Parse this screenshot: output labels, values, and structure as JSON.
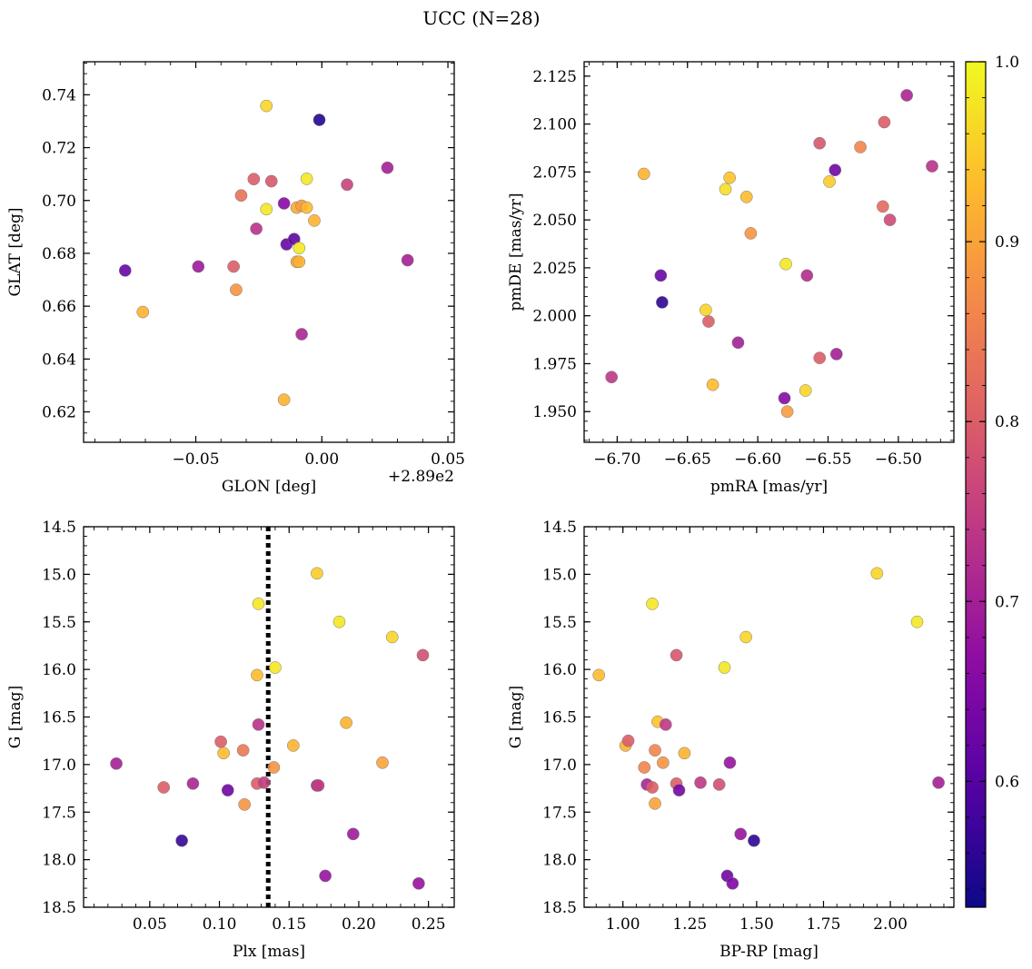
{
  "figure_title": "UCC (N=28)",
  "colorbar": {
    "ticks": [
      0.6,
      0.7,
      0.8,
      0.9,
      1.0
    ],
    "tick_labels": [
      "0.6",
      "0.7",
      "0.8",
      "0.9",
      "1.0"
    ],
    "range": [
      0.53,
      1.0
    ],
    "colormap": "plasma"
  },
  "chart_data": [
    {
      "type": "scatter",
      "id": "glon-glat",
      "xlabel": "GLON [deg]",
      "ylabel": "GLAT [deg]",
      "x_offset_label": "+2.89e2",
      "xlim": [
        -0.0945,
        0.0525
      ],
      "ylim": [
        0.6085,
        0.7525
      ],
      "xticks": [
        -0.05,
        0.0,
        0.05
      ],
      "xtick_labels": [
        "−0.05",
        "0.00",
        "0.05"
      ],
      "yticks": [
        0.62,
        0.64,
        0.66,
        0.68,
        0.7,
        0.72,
        0.74
      ],
      "ytick_labels": [
        "0.62",
        "0.64",
        "0.66",
        "0.68",
        "0.70",
        "0.72",
        "0.74"
      ],
      "points": [
        {
          "x": -0.078,
          "y": 0.6735,
          "c": 0.62
        },
        {
          "x": -0.071,
          "y": 0.6578,
          "c": 0.92
        },
        {
          "x": -0.049,
          "y": 0.675,
          "c": 0.69
        },
        {
          "x": -0.035,
          "y": 0.675,
          "c": 0.8
        },
        {
          "x": -0.034,
          "y": 0.6662,
          "c": 0.88
        },
        {
          "x": -0.032,
          "y": 0.7019,
          "c": 0.83
        },
        {
          "x": -0.027,
          "y": 0.7081,
          "c": 0.8
        },
        {
          "x": -0.026,
          "y": 0.6893,
          "c": 0.73
        },
        {
          "x": -0.022,
          "y": 0.7358,
          "c": 0.96
        },
        {
          "x": -0.022,
          "y": 0.6967,
          "c": 0.98
        },
        {
          "x": -0.02,
          "y": 0.7073,
          "c": 0.79
        },
        {
          "x": -0.015,
          "y": 0.6989,
          "c": 0.66
        },
        {
          "x": -0.015,
          "y": 0.6246,
          "c": 0.92
        },
        {
          "x": -0.014,
          "y": 0.6834,
          "c": 0.62
        },
        {
          "x": -0.011,
          "y": 0.6854,
          "c": 0.61
        },
        {
          "x": -0.01,
          "y": 0.6768,
          "c": 0.9
        },
        {
          "x": -0.01,
          "y": 0.6973,
          "c": 0.91
        },
        {
          "x": -0.009,
          "y": 0.6768,
          "c": 0.92
        },
        {
          "x": -0.009,
          "y": 0.682,
          "c": 0.98
        },
        {
          "x": -0.008,
          "y": 0.698,
          "c": 0.89
        },
        {
          "x": -0.008,
          "y": 0.6494,
          "c": 0.71
        },
        {
          "x": -0.006,
          "y": 0.7082,
          "c": 0.98
        },
        {
          "x": -0.006,
          "y": 0.6973,
          "c": 0.93
        },
        {
          "x": -0.003,
          "y": 0.6924,
          "c": 0.92
        },
        {
          "x": -0.001,
          "y": 0.7305,
          "c": 0.55
        },
        {
          "x": 0.01,
          "y": 0.706,
          "c": 0.76
        },
        {
          "x": 0.026,
          "y": 0.7124,
          "c": 0.7
        },
        {
          "x": 0.034,
          "y": 0.6774,
          "c": 0.7
        }
      ]
    },
    {
      "type": "scatter",
      "id": "pmra-pmde",
      "xlabel": "pmRA [mas/yr]",
      "ylabel": "pmDE [mas/yr]",
      "xlim": [
        -6.7235,
        -6.4605
      ],
      "ylim": [
        1.934,
        2.1325
      ],
      "xticks": [
        -6.7,
        -6.65,
        -6.6,
        -6.55,
        -6.5
      ],
      "xtick_labels": [
        "−6.70",
        "−6.65",
        "−6.60",
        "−6.55",
        "−6.50"
      ],
      "yticks": [
        1.95,
        1.975,
        2.0,
        2.025,
        2.05,
        2.075,
        2.1,
        2.125
      ],
      "ytick_labels": [
        "1.950",
        "1.975",
        "2.000",
        "2.025",
        "2.050",
        "2.075",
        "2.100",
        "2.125"
      ],
      "points": [
        {
          "x": -6.704,
          "y": 1.968,
          "c": 0.74
        },
        {
          "x": -6.681,
          "y": 2.074,
          "c": 0.92
        },
        {
          "x": -6.669,
          "y": 2.021,
          "c": 0.62
        },
        {
          "x": -6.668,
          "y": 2.007,
          "c": 0.56
        },
        {
          "x": -6.637,
          "y": 2.003,
          "c": 0.96
        },
        {
          "x": -6.635,
          "y": 1.997,
          "c": 0.8
        },
        {
          "x": -6.632,
          "y": 1.964,
          "c": 0.93
        },
        {
          "x": -6.623,
          "y": 2.066,
          "c": 0.97
        },
        {
          "x": -6.62,
          "y": 2.072,
          "c": 0.94
        },
        {
          "x": -6.614,
          "y": 1.986,
          "c": 0.7
        },
        {
          "x": -6.608,
          "y": 2.062,
          "c": 0.93
        },
        {
          "x": -6.605,
          "y": 2.043,
          "c": 0.88
        },
        {
          "x": -6.581,
          "y": 1.957,
          "c": 0.66
        },
        {
          "x": -6.58,
          "y": 2.027,
          "c": 0.98
        },
        {
          "x": -6.579,
          "y": 1.95,
          "c": 0.89
        },
        {
          "x": -6.566,
          "y": 1.961,
          "c": 0.96
        },
        {
          "x": -6.565,
          "y": 2.021,
          "c": 0.72
        },
        {
          "x": -6.556,
          "y": 1.978,
          "c": 0.8
        },
        {
          "x": -6.556,
          "y": 2.09,
          "c": 0.79
        },
        {
          "x": -6.549,
          "y": 2.07,
          "c": 0.95
        },
        {
          "x": -6.545,
          "y": 2.076,
          "c": 0.63
        },
        {
          "x": -6.544,
          "y": 1.98,
          "c": 0.7
        },
        {
          "x": -6.527,
          "y": 2.088,
          "c": 0.86
        },
        {
          "x": -6.511,
          "y": 2.057,
          "c": 0.82
        },
        {
          "x": -6.51,
          "y": 2.101,
          "c": 0.8
        },
        {
          "x": -6.506,
          "y": 2.05,
          "c": 0.77
        },
        {
          "x": -6.494,
          "y": 2.115,
          "c": 0.71
        },
        {
          "x": -6.476,
          "y": 2.078,
          "c": 0.73
        }
      ]
    },
    {
      "type": "scatter",
      "id": "plx-g",
      "xlabel": "Plx [mas]",
      "ylabel": "G [mag]",
      "xlim": [
        0.0025,
        0.2685
      ],
      "ylim": [
        18.5,
        14.5
      ],
      "y_inverted": true,
      "vline": {
        "x": 0.135,
        "style": "dotted"
      },
      "xticks": [
        0.05,
        0.1,
        0.15,
        0.2,
        0.25
      ],
      "xtick_labels": [
        "0.05",
        "0.10",
        "0.15",
        "0.20",
        "0.25"
      ],
      "yticks": [
        14.5,
        15.0,
        15.5,
        16.0,
        16.5,
        17.0,
        17.5,
        18.0,
        18.5
      ],
      "ytick_labels": [
        "14.5",
        "15.0",
        "15.5",
        "16.0",
        "16.5",
        "17.0",
        "17.5",
        "18.0",
        "18.5"
      ],
      "points": [
        {
          "x": 0.026,
          "y": 16.99,
          "c": 0.7
        },
        {
          "x": 0.06,
          "y": 17.24,
          "c": 0.8
        },
        {
          "x": 0.073,
          "y": 17.8,
          "c": 0.57
        },
        {
          "x": 0.081,
          "y": 17.2,
          "c": 0.71
        },
        {
          "x": 0.101,
          "y": 16.76,
          "c": 0.8
        },
        {
          "x": 0.103,
          "y": 16.88,
          "c": 0.93
        },
        {
          "x": 0.106,
          "y": 17.27,
          "c": 0.63
        },
        {
          "x": 0.117,
          "y": 16.85,
          "c": 0.84
        },
        {
          "x": 0.118,
          "y": 17.42,
          "c": 0.88
        },
        {
          "x": 0.127,
          "y": 17.2,
          "c": 0.8
        },
        {
          "x": 0.127,
          "y": 16.06,
          "c": 0.93
        },
        {
          "x": 0.128,
          "y": 15.31,
          "c": 0.98
        },
        {
          "x": 0.128,
          "y": 16.58,
          "c": 0.73
        },
        {
          "x": 0.132,
          "y": 17.19,
          "c": 0.75
        },
        {
          "x": 0.139,
          "y": 17.03,
          "c": 0.88
        },
        {
          "x": 0.14,
          "y": 15.98,
          "c": 0.98
        },
        {
          "x": 0.153,
          "y": 16.8,
          "c": 0.92
        },
        {
          "x": 0.17,
          "y": 14.99,
          "c": 0.95
        },
        {
          "x": 0.17,
          "y": 17.22,
          "c": 0.7
        },
        {
          "x": 0.171,
          "y": 17.22,
          "c": 0.75
        },
        {
          "x": 0.176,
          "y": 18.17,
          "c": 0.68
        },
        {
          "x": 0.186,
          "y": 15.5,
          "c": 0.98
        },
        {
          "x": 0.191,
          "y": 16.56,
          "c": 0.92
        },
        {
          "x": 0.196,
          "y": 17.73,
          "c": 0.69
        },
        {
          "x": 0.217,
          "y": 16.98,
          "c": 0.9
        },
        {
          "x": 0.224,
          "y": 15.66,
          "c": 0.96
        },
        {
          "x": 0.243,
          "y": 18.25,
          "c": 0.68
        },
        {
          "x": 0.246,
          "y": 15.85,
          "c": 0.78
        }
      ]
    },
    {
      "type": "scatter",
      "id": "bprp-g",
      "xlabel": "BP-RP [mag]",
      "ylabel": "G [mag]",
      "xlim": [
        0.855,
        2.2375
      ],
      "ylim": [
        18.5,
        14.5
      ],
      "y_inverted": true,
      "xticks": [
        1.0,
        1.25,
        1.5,
        1.75,
        2.0
      ],
      "xtick_labels": [
        "1.00",
        "1.25",
        "1.50",
        "1.75",
        "2.00"
      ],
      "yticks": [
        14.5,
        15.0,
        15.5,
        16.0,
        16.5,
        17.0,
        17.5,
        18.0,
        18.5
      ],
      "ytick_labels": [
        "14.5",
        "15.0",
        "15.5",
        "16.0",
        "16.5",
        "17.0",
        "17.5",
        "18.0",
        "18.5"
      ],
      "points": [
        {
          "x": 0.91,
          "y": 16.06,
          "c": 0.93
        },
        {
          "x": 1.01,
          "y": 16.8,
          "c": 0.92
        },
        {
          "x": 1.02,
          "y": 16.75,
          "c": 0.8
        },
        {
          "x": 1.08,
          "y": 17.03,
          "c": 0.86
        },
        {
          "x": 1.09,
          "y": 17.21,
          "c": 0.71
        },
        {
          "x": 1.11,
          "y": 15.31,
          "c": 0.98
        },
        {
          "x": 1.11,
          "y": 17.24,
          "c": 0.8
        },
        {
          "x": 1.12,
          "y": 16.85,
          "c": 0.86
        },
        {
          "x": 1.12,
          "y": 17.41,
          "c": 0.9
        },
        {
          "x": 1.13,
          "y": 16.55,
          "c": 0.94
        },
        {
          "x": 1.15,
          "y": 16.98,
          "c": 0.88
        },
        {
          "x": 1.16,
          "y": 16.58,
          "c": 0.74
        },
        {
          "x": 1.2,
          "y": 17.2,
          "c": 0.8
        },
        {
          "x": 1.2,
          "y": 15.85,
          "c": 0.79
        },
        {
          "x": 1.21,
          "y": 17.27,
          "c": 0.64
        },
        {
          "x": 1.23,
          "y": 16.88,
          "c": 0.92
        },
        {
          "x": 1.29,
          "y": 17.19,
          "c": 0.74
        },
        {
          "x": 1.36,
          "y": 17.21,
          "c": 0.78
        },
        {
          "x": 1.38,
          "y": 15.98,
          "c": 0.98
        },
        {
          "x": 1.39,
          "y": 18.17,
          "c": 0.63
        },
        {
          "x": 1.4,
          "y": 16.98,
          "c": 0.68
        },
        {
          "x": 1.41,
          "y": 18.25,
          "c": 0.65
        },
        {
          "x": 1.44,
          "y": 17.73,
          "c": 0.68
        },
        {
          "x": 1.46,
          "y": 15.66,
          "c": 0.96
        },
        {
          "x": 1.49,
          "y": 17.8,
          "c": 0.56
        },
        {
          "x": 1.95,
          "y": 14.99,
          "c": 0.96
        },
        {
          "x": 2.1,
          "y": 15.5,
          "c": 0.98
        },
        {
          "x": 2.18,
          "y": 17.19,
          "c": 0.7
        }
      ]
    }
  ]
}
